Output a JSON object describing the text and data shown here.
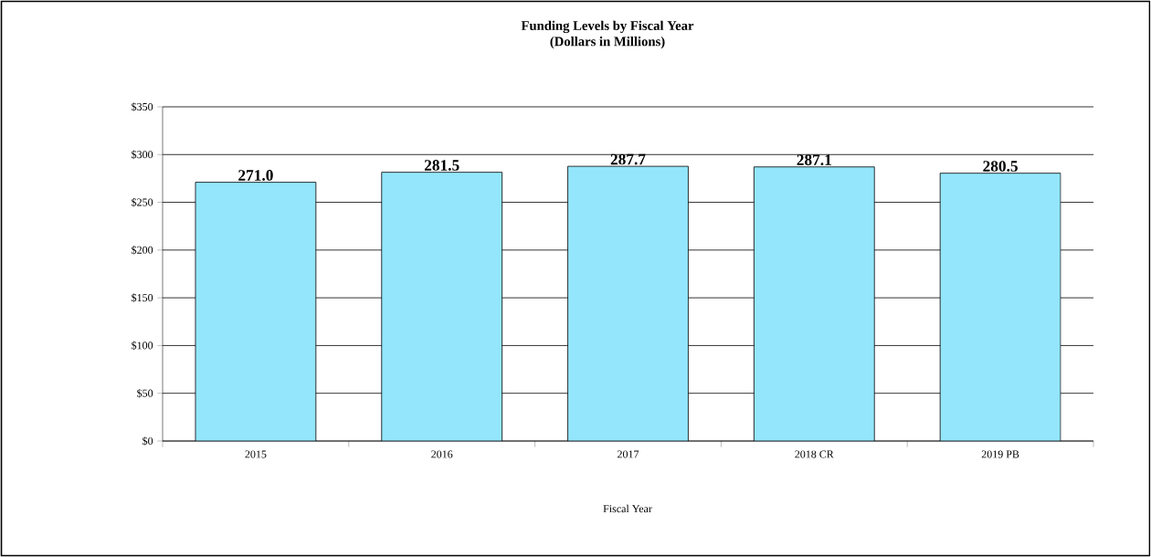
{
  "chart_data": {
    "type": "bar",
    "title": "Funding Levels by Fiscal Year",
    "subtitle": "(Dollars in Millions)",
    "xlabel": "Fiscal Year",
    "categories": [
      "2015",
      "2016",
      "2017",
      "2018 CR",
      "2019 PB"
    ],
    "values": [
      271.0,
      281.5,
      287.7,
      287.1,
      280.5
    ],
    "value_labels": [
      "271.0",
      "281.5",
      "287.7",
      "287.1",
      "280.5"
    ],
    "color": "#93e6fb",
    "ylim": [
      0,
      350
    ],
    "yticks": [
      {
        "value": 0,
        "label": "$0"
      },
      {
        "value": 50,
        "label": "$50"
      },
      {
        "value": 100,
        "label": "$100"
      },
      {
        "value": 150,
        "label": "$150"
      },
      {
        "value": 200,
        "label": "$200"
      },
      {
        "value": 250,
        "label": "$250"
      },
      {
        "value": 300,
        "label": "$300"
      },
      {
        "value": 350,
        "label": "$350"
      }
    ],
    "grid": "y"
  }
}
